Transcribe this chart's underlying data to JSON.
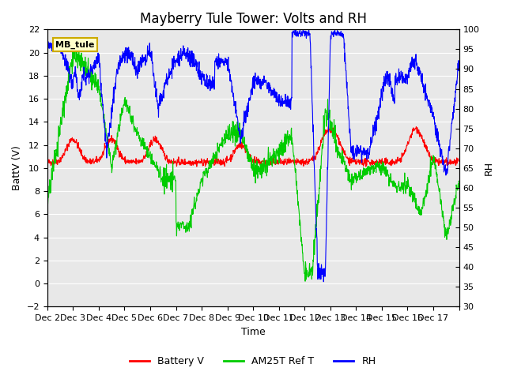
{
  "title": "Mayberry Tule Tower: Volts and RH",
  "xlabel": "Time",
  "ylabel_left": "BattV (V)",
  "ylabel_right": "RH",
  "xlim": [
    0,
    16
  ],
  "ylim_left": [
    -2,
    22
  ],
  "ylim_right": [
    30,
    100
  ],
  "xtick_positions": [
    0,
    1,
    2,
    3,
    4,
    5,
    6,
    7,
    8,
    9,
    10,
    11,
    12,
    13,
    14,
    15,
    16
  ],
  "xtick_labels": [
    "Dec 2",
    "Dec 3",
    "Dec 4",
    "Dec 5",
    "Dec 6",
    "Dec 7",
    "Dec 8",
    "Dec 9",
    "Dec 10",
    "Dec 11",
    "Dec 12",
    "Dec 13",
    "Dec 14",
    "Dec 15",
    "Dec 16",
    "Dec 17",
    ""
  ],
  "ytick_left": [
    -2,
    0,
    2,
    4,
    6,
    8,
    10,
    12,
    14,
    16,
    18,
    20,
    22
  ],
  "ytick_right": [
    30,
    35,
    40,
    45,
    50,
    55,
    60,
    65,
    70,
    75,
    80,
    85,
    90,
    95,
    100
  ],
  "bg_color": "#e8e8e8",
  "legend_label_box": "MB_tule",
  "legend_box_color": "#ffffcc",
  "legend_box_edge": "#ccaa00",
  "line_colors": {
    "battery": "#ff0000",
    "am25t": "#00cc00",
    "rh": "#0000ff"
  },
  "title_fontsize": 12,
  "axis_fontsize": 9,
  "tick_fontsize": 8
}
